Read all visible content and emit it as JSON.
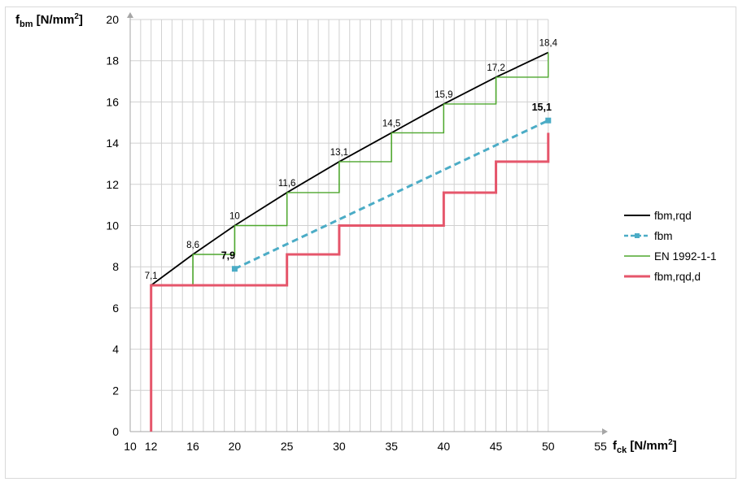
{
  "chart_data": {
    "type": "line",
    "xlabel": {
      "main": "f",
      "sub": "ck",
      "unit": " [N/mm",
      "sup": "2",
      "close": "]"
    },
    "ylabel": {
      "main": "f",
      "sub": "bm",
      "unit": " [N/mm",
      "sup": "2",
      "close": "]"
    },
    "xlim": [
      10,
      55
    ],
    "ylim": [
      0,
      20
    ],
    "x_tick_labels": [
      "10",
      "12",
      "16",
      "20",
      "25",
      "30",
      "35",
      "40",
      "45",
      "50",
      "55"
    ],
    "y_tick_labels": [
      "0",
      "2",
      "4",
      "6",
      "8",
      "10",
      "12",
      "14",
      "16",
      "18",
      "20"
    ],
    "grid": true,
    "legend_position": "right",
    "series": [
      {
        "name": "fbm,rqd",
        "color": "#000000",
        "style": "solid-curve",
        "x": [
          12,
          16,
          20,
          25,
          30,
          35,
          40,
          45,
          50
        ],
        "y": [
          7.1,
          8.6,
          10,
          11.6,
          13.1,
          14.5,
          15.9,
          17.2,
          18.4
        ]
      },
      {
        "name": "fbm",
        "color": "#4bacc6",
        "style": "dashed-markers",
        "x": [
          20,
          50
        ],
        "y": [
          7.9,
          15.1
        ]
      },
      {
        "name": "EN 1992-1-1",
        "color": "#4ea72e",
        "style": "steps",
        "x": [
          12,
          16,
          20,
          25,
          30,
          35,
          40,
          45,
          50
        ],
        "y": [
          7.1,
          8.6,
          10,
          11.6,
          13.1,
          14.5,
          15.9,
          17.2,
          18.4
        ]
      },
      {
        "name": "fbm,rqd,d",
        "color": "#e5566b",
        "style": "steps-thick",
        "points": [
          [
            12,
            0
          ],
          [
            12,
            7.1
          ],
          [
            25,
            7.1
          ],
          [
            25,
            8.6
          ],
          [
            30,
            8.6
          ],
          [
            30,
            10
          ],
          [
            40,
            10
          ],
          [
            40,
            11.6
          ],
          [
            45,
            11.6
          ],
          [
            45,
            13.1
          ],
          [
            50,
            13.1
          ],
          [
            50,
            14.5
          ]
        ]
      }
    ],
    "point_labels": [
      {
        "x": 12,
        "y": 7.1,
        "text": "7,1",
        "bold": false
      },
      {
        "x": 16,
        "y": 8.6,
        "text": "8,6",
        "bold": false
      },
      {
        "x": 20,
        "y": 10,
        "text": "10",
        "bold": false
      },
      {
        "x": 25,
        "y": 11.6,
        "text": "11,6",
        "bold": false
      },
      {
        "x": 30,
        "y": 13.1,
        "text": "13,1",
        "bold": false
      },
      {
        "x": 35,
        "y": 14.5,
        "text": "14,5",
        "bold": false
      },
      {
        "x": 40,
        "y": 15.9,
        "text": "15,9",
        "bold": false
      },
      {
        "x": 45,
        "y": 17.2,
        "text": "17,2",
        "bold": false
      },
      {
        "x": 50,
        "y": 18.4,
        "text": "18,4",
        "bold": false
      },
      {
        "x": 20,
        "y": 7.9,
        "text": "7,9",
        "bold": true
      },
      {
        "x": 50,
        "y": 15.1,
        "text": "15,1",
        "bold": true
      }
    ],
    "colors": {
      "grid": "#d0d0d0",
      "axis": "#a6a6a6"
    }
  }
}
